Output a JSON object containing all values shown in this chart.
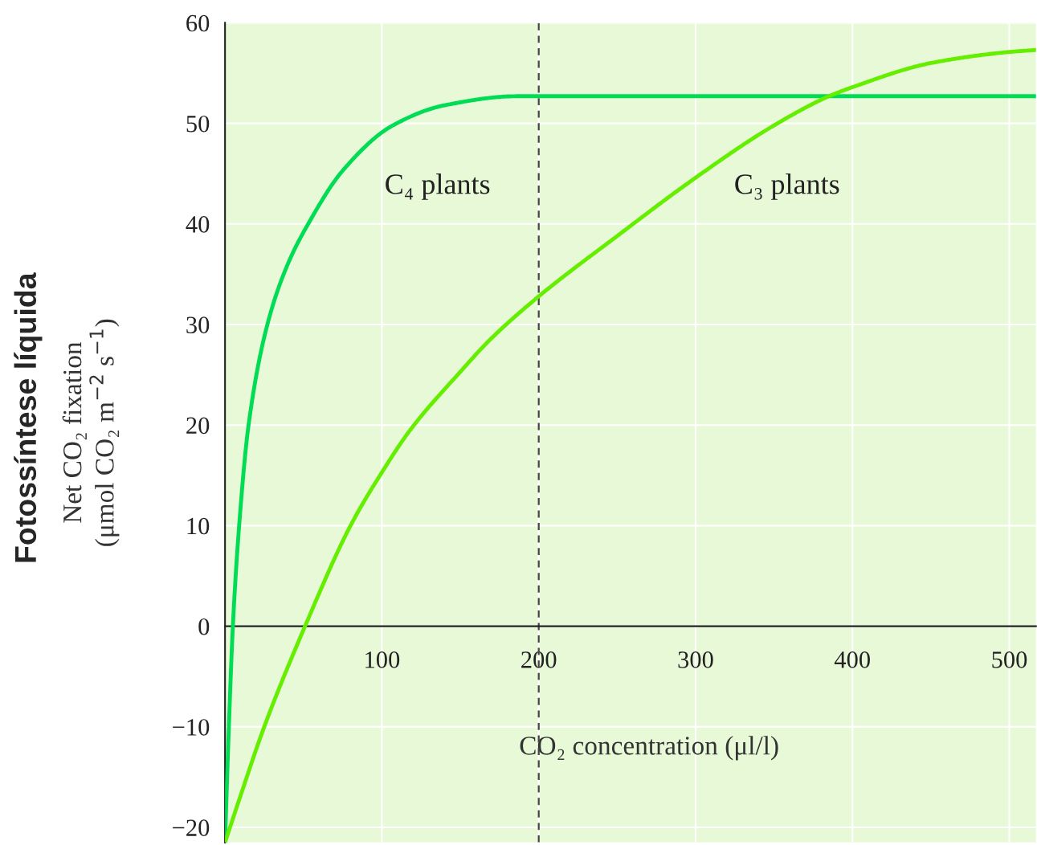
{
  "chart_data": {
    "type": "line",
    "xlabel": "CO₂ concentration (μl/l)",
    "ylabel": "Net CO₂ fixation\n(μmol CO₂ m$^{−2}$ s$^{−1}$)",
    "annotations": [
      "Fotossíntese líquida",
      "C₄ plants",
      "C₃ plants"
    ],
    "series": [
      {
        "color": "#00dd55",
        "x": [
          0,
          2,
          5,
          9,
          15,
          27,
          40,
          53,
          75,
          107,
          140,
          186,
          200,
          517
        ],
        "values": [
          -21.5,
          -12,
          0,
          10,
          20,
          30,
          36,
          40,
          45.3,
          49.8,
          51.8,
          52.7,
          52.7,
          52.7
        ]
      },
      {
        "color": "#66ee00",
        "x": [
          0,
          10,
          25,
          51,
          80,
          100,
          118,
          150,
          169,
          200,
          250,
          300,
          350,
          385,
          400,
          450,
          500,
          517
        ],
        "values": [
          -21.5,
          -16.8,
          -10,
          0,
          10,
          15.3,
          19.5,
          25.3,
          28.5,
          32.8,
          38.8,
          44.6,
          49.8,
          52.7,
          53.6,
          56,
          57.1,
          57.3
        ]
      }
    ],
    "xlim": [
      0,
      517
    ],
    "ylim": [
      -21.5,
      60
    ],
    "xticks": [
      100,
      200,
      300,
      400,
      500
    ],
    "yticks": [
      {
        "value": -20,
        "label": "−20"
      },
      {
        "value": -10,
        "label": "−10"
      },
      0,
      10,
      20,
      30,
      40,
      50,
      60
    ],
    "ref_lines": [
      {
        "axis": "x",
        "value": 200,
        "color": "#444444",
        "line_style": "dashed"
      }
    ],
    "grid": true
  }
}
